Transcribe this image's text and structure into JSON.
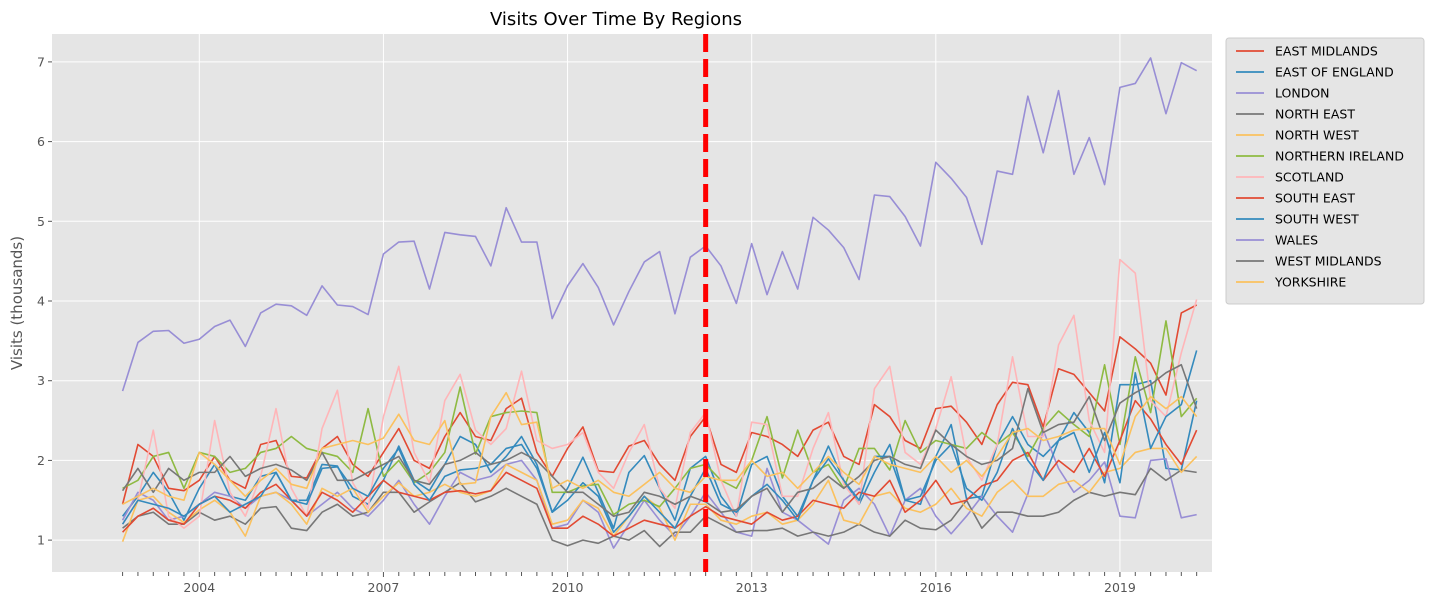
{
  "chart_data": {
    "type": "line",
    "title": "Visits Over Time By Regions",
    "xlabel": "",
    "ylabel": "Visits (thousands)",
    "x_ticks": [
      "2004",
      "2007",
      "2010",
      "2013",
      "2016",
      "2019"
    ],
    "x_tick_values": [
      2004.0,
      2007.0,
      2010.0,
      2013.0,
      2016.0,
      2019.0
    ],
    "xlim": [
      2001.6,
      2020.5
    ],
    "ylim": [
      0.6,
      7.35
    ],
    "y_ticks": [
      1,
      2,
      3,
      4,
      5,
      6,
      7
    ],
    "grid": true,
    "style": "ggplot",
    "legend_position": "outside-right-top",
    "vline": {
      "x": 2012.25,
      "color": "#ff0000",
      "style": "dashed"
    },
    "series": [
      {
        "name": "EAST MIDLANDS",
        "color": "#E24A33",
        "values": [
          1.45,
          2.2,
          2.05,
          1.65,
          1.62,
          1.75,
          2.05,
          1.75,
          1.65,
          2.2,
          2.25,
          1.8,
          1.78,
          2.15,
          2.3,
          1.95,
          1.8,
          2.1,
          2.4,
          2.0,
          1.9,
          2.3,
          2.6,
          2.3,
          2.25,
          2.65,
          2.78,
          2.1,
          1.8,
          2.15,
          2.42,
          1.87,
          1.85,
          2.18,
          2.25,
          1.95,
          1.75,
          2.3,
          2.55,
          1.95,
          1.85,
          2.35,
          2.3,
          2.2,
          2.05,
          2.38,
          2.48,
          2.05,
          1.95,
          2.7,
          2.55,
          2.25,
          2.15,
          2.65,
          2.68,
          2.48,
          2.2,
          2.7,
          2.98,
          2.95,
          2.42,
          3.15,
          3.08,
          2.85,
          2.62,
          3.55,
          3.4,
          3.22,
          2.82,
          3.85,
          3.95
        ]
      },
      {
        "name": "EAST OF ENGLAND",
        "color": "#348ABD",
        "values": [
          1.3,
          1.55,
          1.85,
          1.6,
          1.25,
          1.65,
          1.95,
          1.55,
          1.5,
          1.8,
          1.85,
          1.5,
          1.5,
          1.95,
          1.93,
          1.55,
          1.45,
          1.75,
          2.18,
          1.75,
          1.62,
          1.95,
          2.3,
          2.2,
          1.85,
          2.05,
          2.3,
          1.95,
          1.35,
          1.65,
          2.04,
          1.6,
          1.15,
          1.85,
          2.06,
          1.65,
          1.25,
          1.9,
          2.05,
          1.55,
          1.3,
          1.95,
          2.05,
          1.55,
          1.3,
          1.75,
          2.18,
          1.75,
          1.45,
          1.85,
          2.2,
          1.5,
          1.45,
          2.05,
          2.45,
          1.52,
          1.55,
          2.2,
          2.55,
          2.2,
          2.05,
          2.25,
          2.6,
          2.35,
          1.72,
          2.95,
          2.95,
          3.0,
          1.9,
          1.88,
          2.75
        ]
      },
      {
        "name": "LONDON",
        "color": "#988ED5",
        "values": [
          1.25,
          1.6,
          1.5,
          1.25,
          1.3,
          1.45,
          1.6,
          1.55,
          1.4,
          1.55,
          1.6,
          1.5,
          1.3,
          1.45,
          1.6,
          1.4,
          1.3,
          1.5,
          1.75,
          1.45,
          1.2,
          1.55,
          1.85,
          1.75,
          1.8,
          1.95,
          2.0,
          1.75,
          1.15,
          1.2,
          1.5,
          1.35,
          0.9,
          1.2,
          1.5,
          1.25,
          1.05,
          1.3,
          1.6,
          1.35,
          1.1,
          1.05,
          1.9,
          1.35,
          1.25,
          1.1,
          0.95,
          1.5,
          1.65,
          1.45,
          1.05,
          1.5,
          1.65,
          1.3,
          1.08,
          1.3,
          1.55,
          1.3,
          1.1,
          1.58,
          2.38,
          1.9,
          1.6,
          1.75,
          1.98,
          1.3,
          1.28,
          2.0,
          2.02,
          1.28,
          1.32
        ]
      },
      {
        "name": "NORTH EAST",
        "color": "#777777",
        "values": [
          1.15,
          1.3,
          1.35,
          1.2,
          1.2,
          1.35,
          1.25,
          1.3,
          1.2,
          1.4,
          1.42,
          1.15,
          1.12,
          1.35,
          1.45,
          1.3,
          1.35,
          1.6,
          1.6,
          1.35,
          1.48,
          1.6,
          1.72,
          1.48,
          1.55,
          1.65,
          1.55,
          1.45,
          1.0,
          0.93,
          1.0,
          0.96,
          1.05,
          1.0,
          1.12,
          0.92,
          1.1,
          1.1,
          1.3,
          1.2,
          1.1,
          1.12,
          1.12,
          1.15,
          1.05,
          1.1,
          1.05,
          1.1,
          1.2,
          1.1,
          1.05,
          1.25,
          1.15,
          1.13,
          1.25,
          1.5,
          1.15,
          1.35,
          1.35,
          1.3,
          1.3,
          1.35,
          1.5,
          1.6,
          1.55,
          1.6,
          1.57,
          1.9,
          1.75,
          1.88,
          1.85
        ]
      },
      {
        "name": "NORTH WEST",
        "color": "#FBC15E",
        "values": [
          0.98,
          1.5,
          1.55,
          1.35,
          1.22,
          1.38,
          1.5,
          1.35,
          1.05,
          1.55,
          1.6,
          1.45,
          1.2,
          1.65,
          1.55,
          1.65,
          1.35,
          1.55,
          1.72,
          1.55,
          1.6,
          1.7,
          1.6,
          1.55,
          1.62,
          1.95,
          1.85,
          1.75,
          1.2,
          1.25,
          1.5,
          1.4,
          1.05,
          1.3,
          1.55,
          1.4,
          1.0,
          1.45,
          1.45,
          1.25,
          1.2,
          1.3,
          1.35,
          1.2,
          1.25,
          1.45,
          1.75,
          1.25,
          1.2,
          1.55,
          1.6,
          1.4,
          1.35,
          1.45,
          1.65,
          1.4,
          1.3,
          1.6,
          1.75,
          1.55,
          1.55,
          1.7,
          1.75,
          1.6,
          1.85,
          1.9,
          2.1,
          2.15,
          2.15,
          1.85,
          2.05
        ]
      },
      {
        "name": "NORTHERN IRELAND",
        "color": "#8EBA42",
        "values": [
          1.65,
          1.75,
          2.05,
          2.1,
          1.65,
          2.1,
          2.05,
          1.85,
          1.9,
          2.1,
          2.15,
          2.3,
          2.15,
          2.1,
          2.05,
          1.85,
          2.65,
          1.8,
          2.0,
          1.72,
          1.85,
          2.1,
          2.92,
          2.08,
          2.55,
          2.6,
          2.62,
          2.6,
          1.6,
          1.6,
          1.68,
          1.7,
          1.32,
          1.45,
          1.5,
          1.42,
          1.65,
          1.9,
          1.95,
          1.75,
          1.65,
          2.0,
          2.55,
          1.78,
          2.38,
          1.85,
          1.95,
          1.65,
          2.15,
          2.15,
          1.88,
          2.5,
          2.1,
          2.25,
          2.2,
          2.15,
          2.35,
          2.2,
          2.35,
          2.05,
          2.4,
          2.62,
          2.45,
          2.3,
          3.2,
          2.2,
          3.3,
          2.6,
          3.75,
          2.55,
          2.78
        ]
      },
      {
        "name": "SCOTLAND",
        "color": "#FFB5B8",
        "values": [
          1.2,
          1.5,
          2.38,
          1.3,
          1.15,
          1.3,
          2.5,
          1.6,
          1.3,
          1.8,
          2.65,
          1.65,
          1.3,
          2.4,
          2.88,
          1.72,
          1.4,
          2.55,
          3.18,
          2.1,
          1.72,
          2.75,
          3.08,
          2.38,
          2.2,
          2.4,
          3.12,
          2.25,
          2.15,
          2.2,
          2.35,
          1.85,
          1.65,
          2.1,
          2.45,
          1.65,
          1.4,
          2.35,
          2.6,
          1.75,
          1.3,
          2.48,
          2.45,
          1.55,
          1.55,
          2.15,
          2.6,
          1.7,
          1.45,
          2.9,
          3.18,
          2.1,
          1.95,
          2.4,
          3.05,
          2.05,
          1.75,
          2.2,
          3.3,
          2.3,
          2.3,
          3.45,
          3.82,
          2.5,
          2.1,
          4.52,
          4.35,
          2.75,
          2.55,
          3.35,
          4.02
        ]
      },
      {
        "name": "SOUTH EAST",
        "color": "#E24A33",
        "values": [
          1.1,
          1.3,
          1.4,
          1.25,
          1.2,
          1.45,
          1.55,
          1.5,
          1.4,
          1.6,
          1.7,
          1.5,
          1.3,
          1.6,
          1.5,
          1.35,
          1.55,
          1.75,
          1.6,
          1.55,
          1.5,
          1.6,
          1.62,
          1.58,
          1.62,
          1.85,
          1.75,
          1.65,
          1.15,
          1.15,
          1.3,
          1.2,
          1.05,
          1.15,
          1.25,
          1.2,
          1.15,
          1.3,
          1.42,
          1.3,
          1.25,
          1.2,
          1.35,
          1.25,
          1.3,
          1.5,
          1.45,
          1.4,
          1.6,
          1.55,
          1.75,
          1.35,
          1.5,
          1.75,
          1.45,
          1.5,
          1.68,
          1.75,
          2.0,
          2.1,
          1.75,
          2.0,
          1.85,
          2.15,
          1.8,
          2.25,
          2.75,
          2.52,
          2.2,
          1.95,
          2.38
        ]
      },
      {
        "name": "SOUTH WEST",
        "color": "#348ABD",
        "values": [
          1.2,
          1.5,
          1.45,
          1.4,
          1.3,
          1.45,
          1.55,
          1.35,
          1.45,
          1.55,
          1.85,
          1.5,
          1.45,
          1.9,
          1.92,
          1.65,
          1.55,
          1.9,
          2.15,
          1.7,
          1.5,
          1.8,
          1.88,
          1.9,
          1.95,
          2.15,
          2.2,
          1.9,
          1.35,
          1.5,
          1.72,
          1.55,
          1.1,
          1.3,
          1.55,
          1.35,
          1.15,
          1.55,
          1.9,
          1.45,
          1.35,
          1.55,
          1.7,
          1.5,
          1.25,
          1.75,
          2.02,
          1.75,
          1.5,
          2.05,
          2.05,
          1.5,
          1.55,
          2.0,
          2.2,
          1.65,
          1.5,
          1.85,
          2.4,
          2.0,
          1.75,
          2.25,
          2.35,
          1.85,
          2.35,
          1.72,
          3.1,
          2.15,
          2.55,
          2.7,
          3.38
        ]
      },
      {
        "name": "WALES",
        "color": "#988ED5",
        "values": [
          2.87,
          3.48,
          3.62,
          3.63,
          3.47,
          3.52,
          3.68,
          3.76,
          3.43,
          3.85,
          3.96,
          3.94,
          3.82,
          4.19,
          3.95,
          3.93,
          3.83,
          4.59,
          4.74,
          4.75,
          4.15,
          4.86,
          4.83,
          4.81,
          4.44,
          5.17,
          4.74,
          4.74,
          3.78,
          4.19,
          4.47,
          4.17,
          3.7,
          4.12,
          4.49,
          4.62,
          3.84,
          4.55,
          4.69,
          4.44,
          3.97,
          4.72,
          4.08,
          4.62,
          4.15,
          5.05,
          4.89,
          4.67,
          4.27,
          5.33,
          5.31,
          5.06,
          4.69,
          5.74,
          5.54,
          5.3,
          4.71,
          5.63,
          5.59,
          6.57,
          5.86,
          6.64,
          5.59,
          6.05,
          5.46,
          6.68,
          6.73,
          7.05,
          6.35,
          6.99,
          6.89
        ]
      },
      {
        "name": "WEST MIDLANDS",
        "color": "#777777",
        "values": [
          1.62,
          1.9,
          1.6,
          1.9,
          1.75,
          1.85,
          1.85,
          2.05,
          1.8,
          1.9,
          1.95,
          1.88,
          1.75,
          2.1,
          1.75,
          1.75,
          1.85,
          1.95,
          2.05,
          1.75,
          1.7,
          1.95,
          2.0,
          2.1,
          1.95,
          2.0,
          2.1,
          2.0,
          1.8,
          1.6,
          1.6,
          1.45,
          1.3,
          1.35,
          1.6,
          1.55,
          1.45,
          1.55,
          1.48,
          1.35,
          1.38,
          1.55,
          1.65,
          1.35,
          1.6,
          1.65,
          1.8,
          1.65,
          1.8,
          2.0,
          2.05,
          1.95,
          1.9,
          2.38,
          2.2,
          2.05,
          1.95,
          2.0,
          2.15,
          2.9,
          2.35,
          2.45,
          2.48,
          2.8,
          2.25,
          2.72,
          2.85,
          2.95,
          3.1,
          3.2,
          2.65
        ]
      },
      {
        "name": "YORKSHIRE",
        "color": "#FBC15E",
        "values": [
          1.45,
          1.55,
          1.65,
          1.55,
          1.5,
          2.1,
          1.95,
          1.75,
          1.55,
          1.75,
          1.9,
          1.7,
          1.65,
          2.15,
          2.2,
          2.25,
          2.2,
          2.28,
          2.58,
          2.25,
          2.2,
          2.5,
          1.7,
          1.72,
          2.55,
          2.85,
          2.45,
          2.48,
          1.65,
          1.75,
          1.65,
          1.75,
          1.6,
          1.55,
          1.7,
          1.85,
          1.65,
          1.6,
          1.8,
          1.75,
          1.75,
          2.0,
          1.8,
          1.85,
          1.65,
          1.85,
          2.05,
          1.85,
          1.7,
          2.05,
          1.95,
          1.9,
          1.85,
          2.05,
          1.85,
          2.0,
          1.8,
          2.05,
          2.35,
          2.4,
          2.25,
          2.3,
          2.38,
          2.4,
          2.4,
          1.95,
          2.55,
          2.8,
          2.65,
          2.8,
          2.55
        ]
      }
    ]
  }
}
